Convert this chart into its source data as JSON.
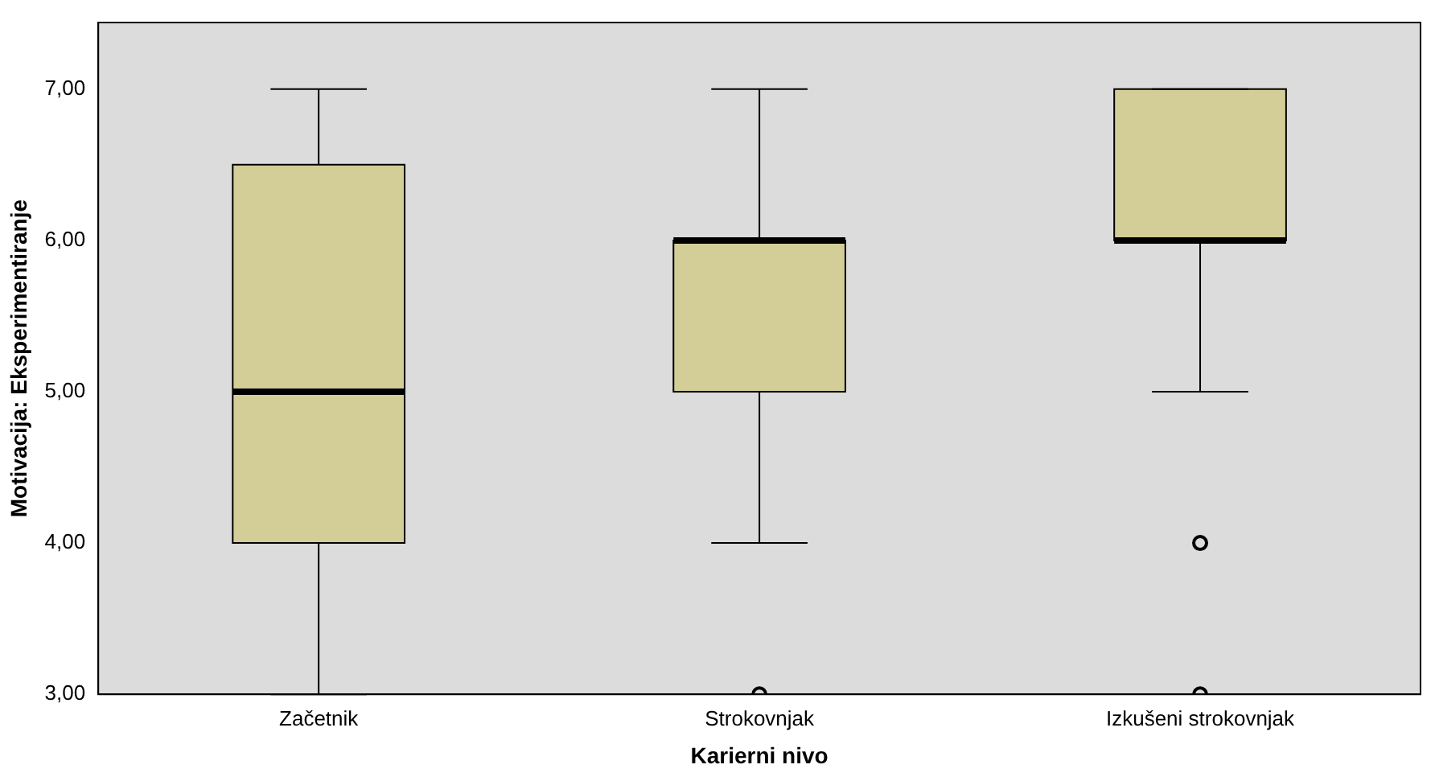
{
  "chart_data": {
    "type": "box",
    "xlabel": "Karierni nivo",
    "ylabel": "Motivacija: Eksperimentiranje",
    "categories": [
      "Začetnik",
      "Strokovnjak",
      "Izkušeni strokovnjak"
    ],
    "boxes": [
      {
        "low": 3,
        "q1": 4,
        "median": 5,
        "q3": 6.5,
        "high": 7
      },
      {
        "low": 4,
        "q1": 5,
        "median": 6,
        "q3": 6,
        "high": 7,
        "outliers": [
          3
        ]
      },
      {
        "low": 5,
        "q1": 6,
        "median": 6,
        "q3": 7,
        "high": 7,
        "outliers": [
          4,
          3
        ]
      }
    ],
    "color": "#d3ce97",
    "ylim": [
      3,
      7.44
    ],
    "yticks": [
      {
        "value": 3,
        "label": "3,00"
      },
      {
        "value": 4,
        "label": "4,00"
      },
      {
        "value": 5,
        "label": "5,00"
      },
      {
        "value": 6,
        "label": "6,00"
      },
      {
        "value": 7,
        "label": "7,00"
      }
    ],
    "grid": false,
    "legend": false,
    "marker": "circle"
  }
}
